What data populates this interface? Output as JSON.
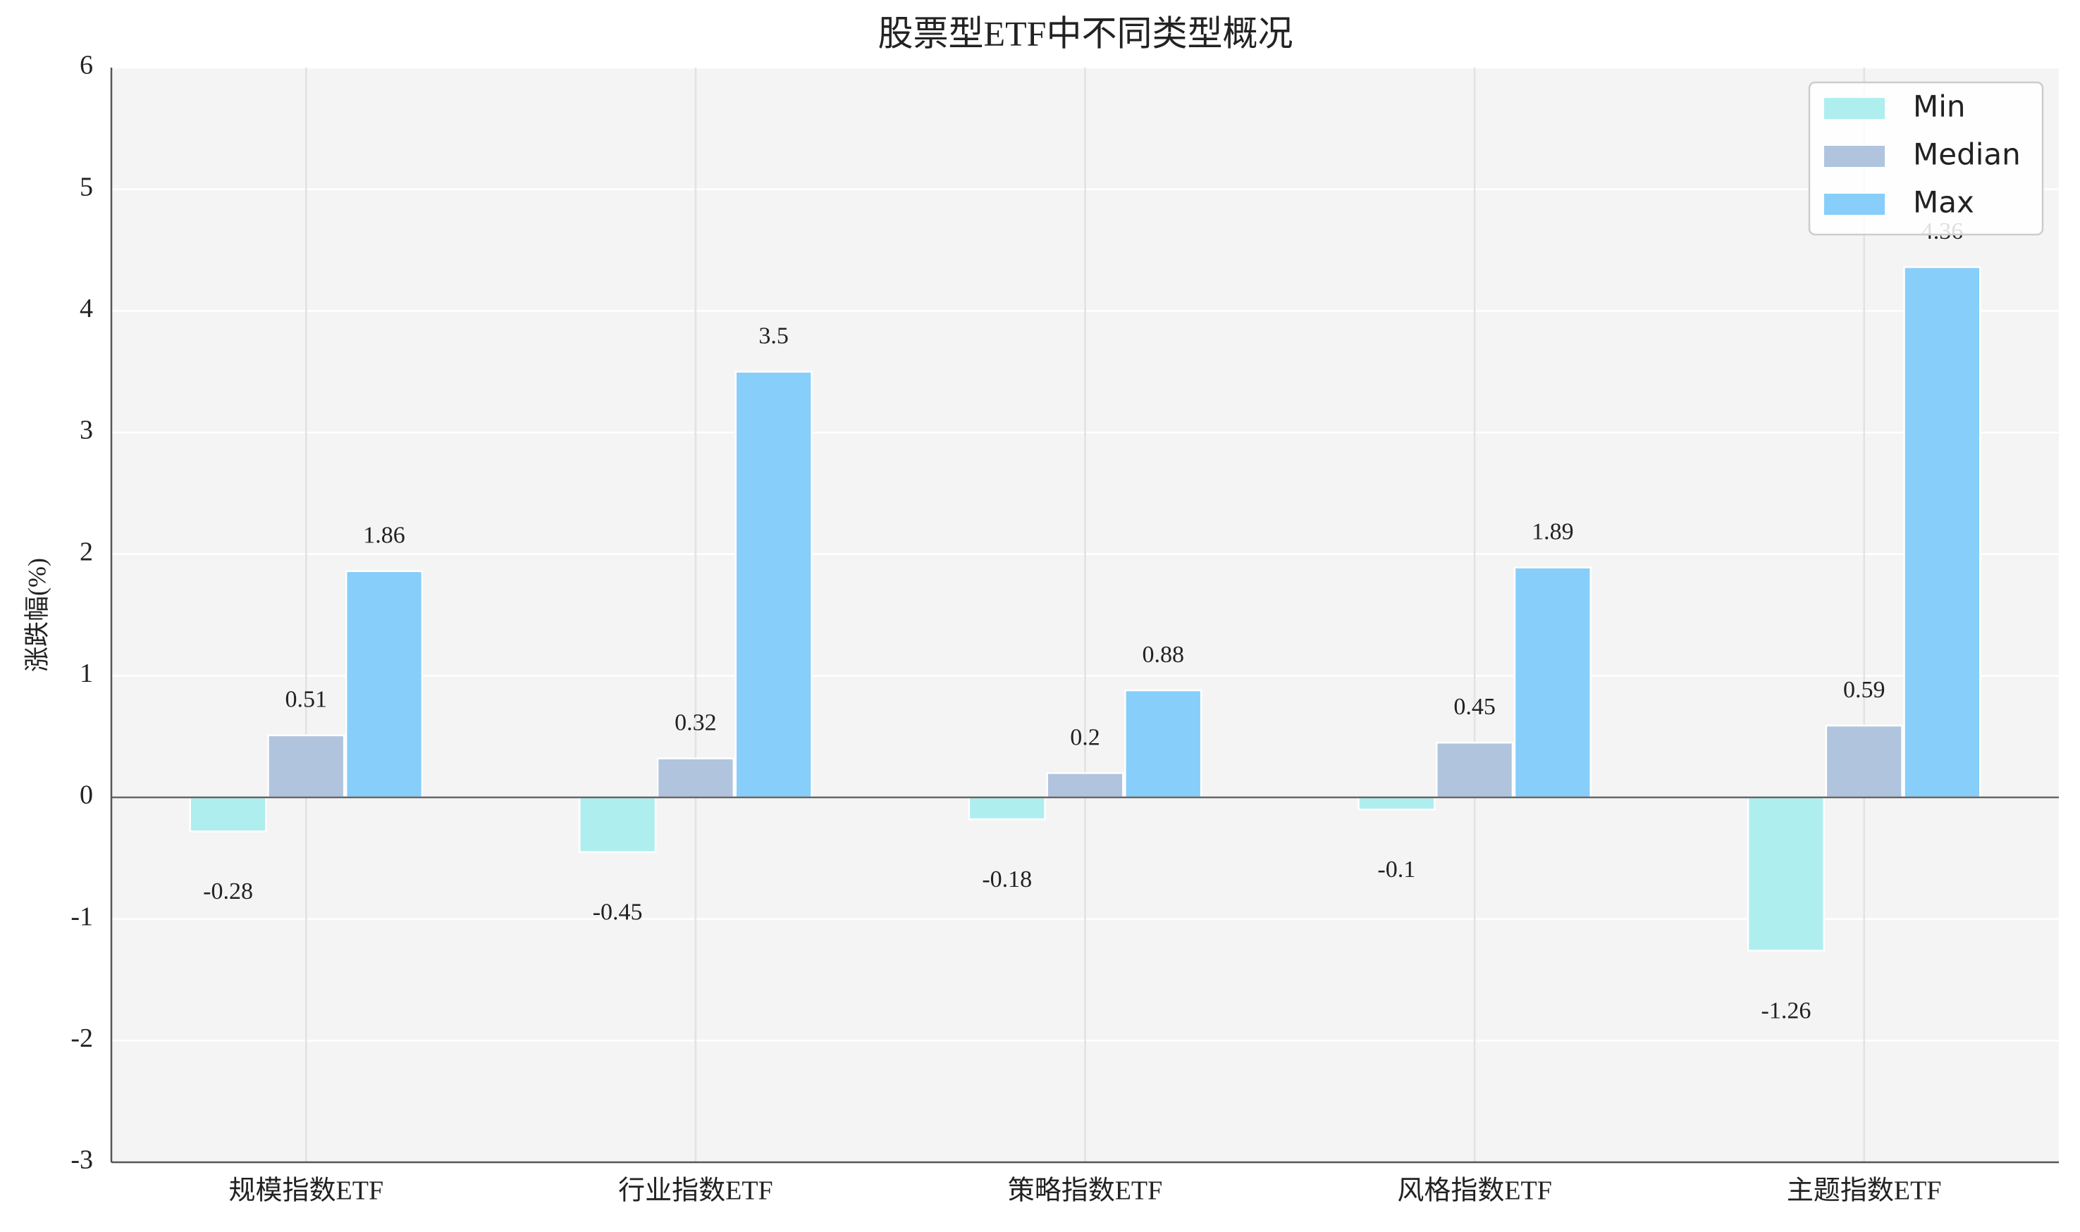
{
  "chart_data": {
    "type": "bar",
    "title": "股票型ETF中不同类型概况",
    "ylabel": "涨跌幅(%)",
    "categories": [
      "规模指数ETF",
      "行业指数ETF",
      "策略指数ETF",
      "风格指数ETF",
      "主题指数ETF"
    ],
    "series": [
      {
        "name": "Min",
        "color": "#afeeee",
        "values": [
          -0.28,
          -0.45,
          -0.18,
          -0.1,
          -1.26
        ]
      },
      {
        "name": "Median",
        "color": "#b0c4de",
        "values": [
          0.51,
          0.32,
          0.2,
          0.45,
          0.59
        ]
      },
      {
        "name": "Max",
        "color": "#87cefa",
        "values": [
          1.86,
          3.5,
          0.88,
          1.89,
          4.36
        ]
      }
    ],
    "ylim": [
      -3,
      6
    ],
    "yticks": [
      -3,
      -2,
      -1,
      0,
      1,
      2,
      3,
      4,
      5,
      6
    ],
    "grid": true,
    "legend": "upper right"
  }
}
